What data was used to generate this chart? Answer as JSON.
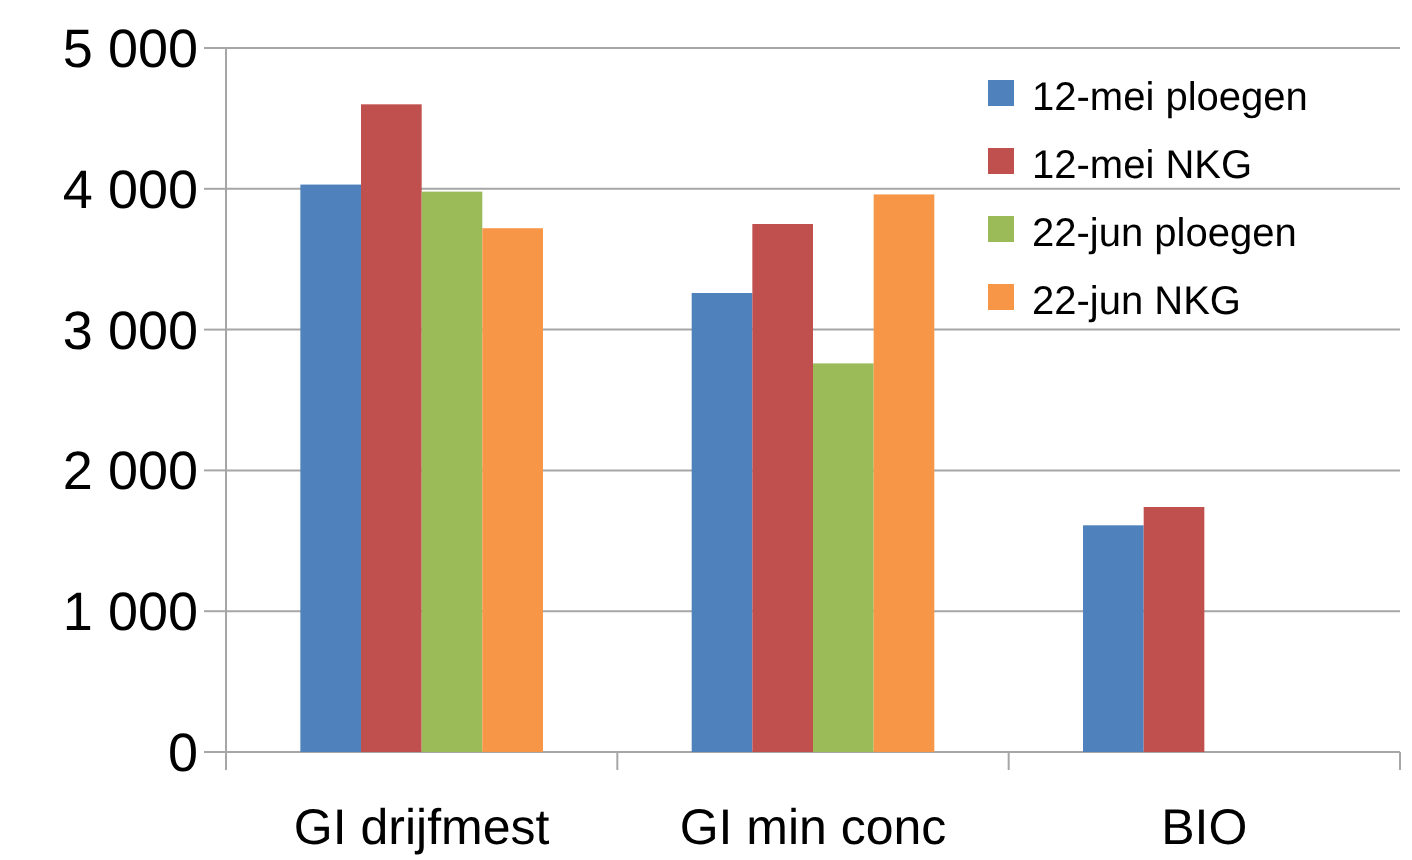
{
  "chart_data": {
    "type": "bar",
    "categories": [
      "GI drijfmest",
      "GI min conc",
      "BIO"
    ],
    "series": [
      {
        "name": "12-mei ploegen",
        "color": "#4f81bd",
        "values": [
          4030,
          3260,
          1610
        ]
      },
      {
        "name": "12-mei NKG",
        "color": "#c0504d",
        "values": [
          4600,
          3750,
          1740
        ]
      },
      {
        "name": "22-jun ploegen",
        "color": "#9bbb59",
        "values": [
          3980,
          2760,
          null
        ]
      },
      {
        "name": "22-jun NKG",
        "color": "#f79646",
        "values": [
          3720,
          3960,
          null
        ]
      }
    ],
    "ylim": [
      0,
      5000
    ],
    "yticks": [
      {
        "value": 0,
        "label": "0"
      },
      {
        "value": 1000,
        "label": "1 000"
      },
      {
        "value": 2000,
        "label": "2 000"
      },
      {
        "value": 3000,
        "label": "3 000"
      },
      {
        "value": 4000,
        "label": "4 000"
      },
      {
        "value": 5000,
        "label": "5 000"
      }
    ],
    "grid": "y",
    "legend": "top right"
  }
}
